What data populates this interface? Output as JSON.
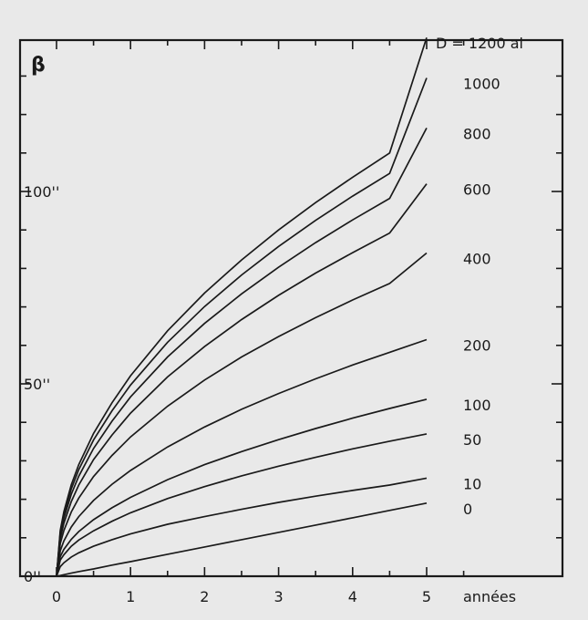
{
  "chart_data": {
    "type": "line",
    "title": "",
    "ylabel": "β",
    "xlabel": "années",
    "x_ticks": [
      "0",
      "1",
      "2",
      "3",
      "4",
      "5"
    ],
    "y_ticks": [
      {
        "value": 0,
        "label": "0''"
      },
      {
        "value": 50,
        "label": "50''"
      },
      {
        "value": 100,
        "label": "100''"
      }
    ],
    "xlim": [
      0,
      5.6
    ],
    "ylim": [
      -0.5,
      141
    ],
    "grid": false,
    "legend_placement": "right of curve ends",
    "x": [
      0,
      0.05,
      0.1,
      0.2,
      0.3,
      0.5,
      0.75,
      1,
      1.5,
      2,
      2.5,
      3,
      3.5,
      4,
      4.5,
      5
    ],
    "series": [
      {
        "name": "0",
        "values": [
          0,
          0.2,
          0.4,
          0.8,
          1.2,
          1.9,
          2.9,
          3.8,
          5.7,
          7.6,
          9.5,
          11.4,
          13.3,
          15.2,
          17.1,
          19
        ]
      },
      {
        "name": "10",
        "values": [
          0,
          2.5,
          3.5,
          5.0,
          6.1,
          7.8,
          9.5,
          11.0,
          13.5,
          15.5,
          17.4,
          19.2,
          20.8,
          22.3,
          23.7,
          25.5
        ]
      },
      {
        "name": "50",
        "values": [
          0,
          4.2,
          5.6,
          7.8,
          9.4,
          11.8,
          14.3,
          16.5,
          20.2,
          23.3,
          26.1,
          28.6,
          30.9,
          33.1,
          35.1,
          37
        ]
      },
      {
        "name": "100",
        "values": [
          0,
          5.1,
          7.0,
          9.6,
          11.6,
          14.7,
          17.8,
          20.5,
          25.1,
          29.0,
          32.4,
          35.5,
          38.4,
          41.1,
          43.6,
          46
        ]
      },
      {
        "name": "200",
        "values": [
          0,
          6.6,
          9.2,
          12.8,
          15.5,
          19.7,
          23.9,
          27.5,
          33.6,
          38.8,
          43.4,
          47.5,
          51.3,
          54.9,
          58.2,
          61.5
        ]
      },
      {
        "name": "400",
        "values": [
          0,
          8.5,
          11.9,
          16.7,
          20.3,
          25.9,
          31.4,
          36.2,
          44.2,
          51.0,
          57.0,
          62.3,
          67.2,
          71.8,
          76.1,
          84
        ]
      },
      {
        "name": "600",
        "values": [
          0,
          9.8,
          13.8,
          19.4,
          23.7,
          30.3,
          36.7,
          42.4,
          51.8,
          59.7,
          66.7,
          73.0,
          78.8,
          84.1,
          89.2,
          102
        ]
      },
      {
        "name": "800",
        "values": [
          0,
          10.7,
          15.1,
          21.3,
          26.0,
          33.2,
          40.3,
          46.6,
          57.0,
          65.7,
          73.4,
          80.3,
          86.7,
          92.6,
          98.2,
          116.5
        ]
      },
      {
        "name": "1000",
        "values": [
          0,
          11.4,
          16.1,
          22.7,
          27.7,
          35.4,
          43.0,
          49.7,
          60.8,
          70.1,
          78.3,
          85.7,
          92.5,
          98.8,
          104.7,
          129.5
        ]
      },
      {
        "name": "D = 1200 al",
        "values": [
          0,
          11.9,
          16.8,
          23.8,
          29.0,
          37.1,
          45.1,
          52.1,
          63.8,
          73.6,
          82.2,
          90.0,
          97.1,
          103.7,
          110.0,
          140
        ]
      }
    ]
  }
}
